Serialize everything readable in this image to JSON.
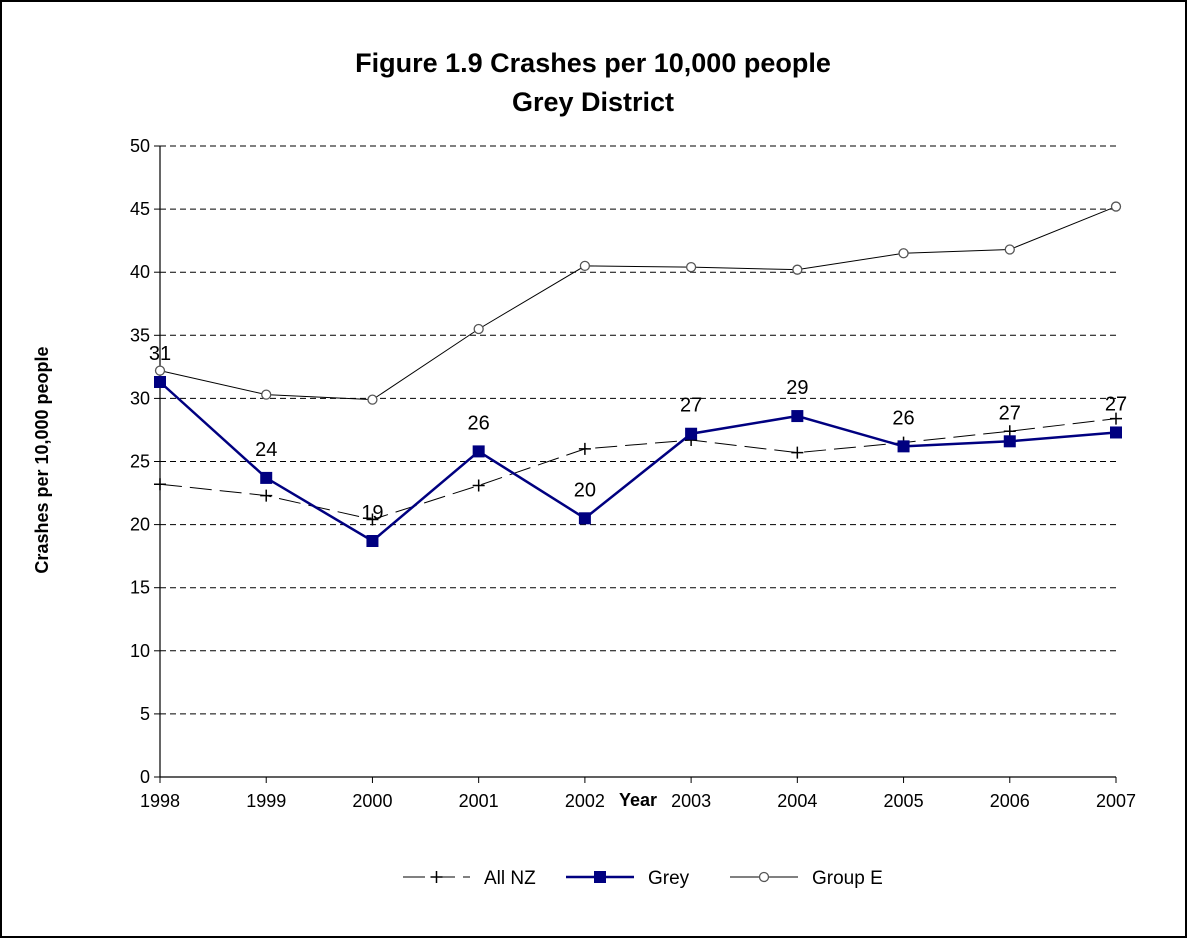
{
  "chart_data": {
    "type": "line",
    "title": "Figure 1.9 Crashes per 10,000 people",
    "subtitle": "Grey District",
    "xlabel": "Year",
    "ylabel": "Crashes per 10,000 people",
    "x": [
      "1998",
      "1999",
      "2000",
      "2001",
      "2002",
      "2003",
      "2004",
      "2005",
      "2006",
      "2007"
    ],
    "ylim": [
      0,
      50
    ],
    "yticks": [
      "0",
      "5",
      "10",
      "15",
      "20",
      "25",
      "30",
      "35",
      "40",
      "45",
      "50"
    ],
    "grid": "horizontal dashed",
    "legend_position": "bottom",
    "series": [
      {
        "name": "All NZ",
        "values": [
          23.2,
          22.3,
          20.4,
          23.1,
          26.0,
          26.7,
          25.7,
          26.5,
          27.4,
          28.4
        ],
        "color": "#000000",
        "marker": "plus",
        "dash": "long-dash"
      },
      {
        "name": "Grey",
        "values": [
          31.3,
          23.7,
          18.7,
          25.8,
          20.5,
          27.2,
          28.6,
          26.2,
          26.6,
          27.3
        ],
        "color": "#000080",
        "marker": "square",
        "labels": [
          "31",
          "24",
          "19",
          "26",
          "20",
          "27",
          "29",
          "26",
          "27",
          "27"
        ]
      },
      {
        "name": "Group E",
        "values": [
          32.2,
          30.3,
          29.9,
          35.5,
          40.5,
          40.4,
          40.2,
          41.5,
          41.8,
          45.2
        ],
        "color": "#000000",
        "marker": "circle"
      }
    ]
  }
}
